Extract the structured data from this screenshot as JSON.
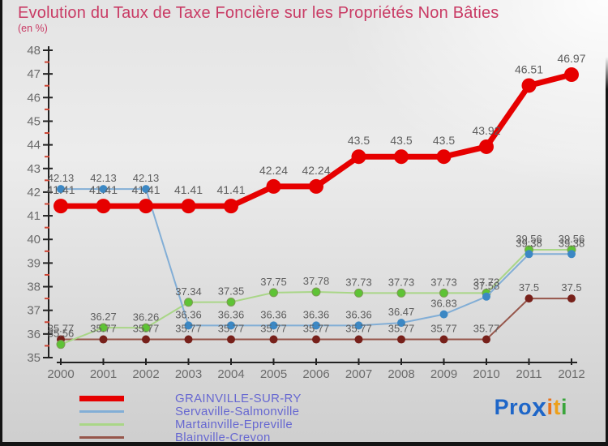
{
  "title": "Evolution du Taux de Taxe Foncière sur les Propriétés Non Bâties",
  "subtitle": "(en %)",
  "chart_data": {
    "type": "line",
    "title": "Evolution du Taux de Taxe Foncière sur les Propriétés Non Bâties",
    "unit": "en %",
    "categories": [
      2000,
      2001,
      2002,
      2003,
      2004,
      2005,
      2006,
      2007,
      2008,
      2009,
      2010,
      2011,
      2012
    ],
    "ylim": [
      35,
      48
    ],
    "y_major_step": 1,
    "y_minor_step": 0.5,
    "grid": false,
    "legend_position": "bottom-left",
    "series": [
      {
        "name": "GRAINVILLE-SUR-RY",
        "line_color": "#e60000",
        "marker_color": "#e60000",
        "line_width": 7,
        "marker_radius": 9,
        "values": [
          41.41,
          41.41,
          41.41,
          41.41,
          41.41,
          42.24,
          42.24,
          43.5,
          43.5,
          43.5,
          43.92,
          46.51,
          46.97
        ]
      },
      {
        "name": "Servaville-Salmonville",
        "line_color": "#82aed6",
        "marker_color": "#3c88c4",
        "line_width": 2,
        "marker_radius": 5,
        "values": [
          42.13,
          42.13,
          42.13,
          36.36,
          36.36,
          36.36,
          36.36,
          36.36,
          36.47,
          36.83,
          37.58,
          39.38,
          39.38
        ]
      },
      {
        "name": "Martainville-Epreville",
        "line_color": "#a9d687",
        "marker_color": "#5ec335",
        "marker_stroke": "#7d9a55",
        "line_width": 2,
        "marker_radius": 5,
        "values": [
          35.56,
          36.27,
          36.26,
          37.34,
          37.35,
          37.75,
          37.78,
          37.73,
          37.73,
          37.73,
          37.73,
          39.56,
          39.56
        ]
      },
      {
        "name": "Blainville-Crevon",
        "line_color": "#96564b",
        "marker_color": "#77201a",
        "line_width": 2,
        "marker_radius": 5,
        "values": [
          35.77,
          35.77,
          35.77,
          35.77,
          35.77,
          35.77,
          35.77,
          35.77,
          35.77,
          35.77,
          35.77,
          37.5,
          37.5
        ]
      }
    ]
  },
  "axis_style": {
    "axis_color": "#222222",
    "minor_tick_color": "#cc4433",
    "tick_label_color": "#6b6b6b",
    "value_label_color": "#5d5d5d"
  },
  "logo": {
    "name": "Proxiti",
    "segments": [
      {
        "text": "Pro",
        "color": "#1e66c8"
      },
      {
        "text": "x",
        "color": "#1e66c8",
        "big": true
      },
      {
        "text": "i",
        "color": "#e8731a"
      },
      {
        "text": "t",
        "color": "#eda019"
      },
      {
        "text": "i",
        "color": "#3aa53c"
      }
    ]
  }
}
